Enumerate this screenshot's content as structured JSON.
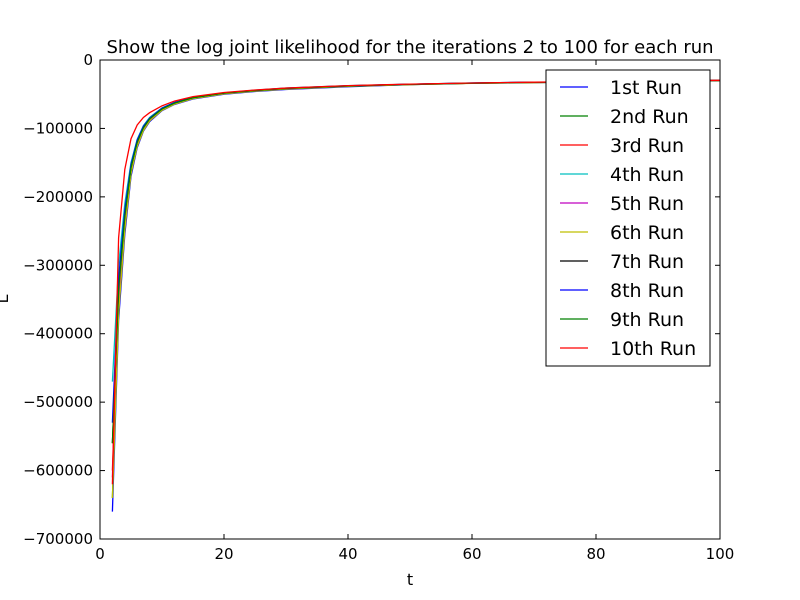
{
  "chart_data": {
    "type": "line",
    "title": "Show the log joint likelihood for the iterations 2 to 100 for each run",
    "xlabel": "t",
    "ylabel": "L",
    "xlim": [
      0,
      100
    ],
    "ylim": [
      -700000,
      0
    ],
    "x_ticks": [
      0,
      20,
      40,
      60,
      80,
      100
    ],
    "y_ticks": [
      0,
      -100000,
      -200000,
      -300000,
      -400000,
      -500000,
      -600000,
      -700000
    ],
    "x_tick_labels": [
      "0",
      "20",
      "40",
      "60",
      "80",
      "100"
    ],
    "y_tick_labels": [
      "0",
      "−100000",
      "−200000",
      "−300000",
      "−400000",
      "−500000",
      "−600000",
      "−700000"
    ],
    "grid": false,
    "legend_position": "top-right",
    "x": [
      2,
      3,
      4,
      5,
      6,
      7,
      8,
      10,
      12,
      15,
      20,
      25,
      30,
      40,
      50,
      60,
      70,
      80,
      90,
      100
    ],
    "series": [
      {
        "name": "1st Run",
        "color": "#0000ff",
        "values": [
          -660000,
          -380000,
          -255000,
          -170000,
          -128000,
          -104000,
          -90000,
          -74000,
          -65000,
          -57000,
          -50000,
          -46000,
          -43000,
          -39000,
          -36000,
          -34000,
          -33000,
          -32000,
          -31000,
          -30000
        ]
      },
      {
        "name": "2nd Run",
        "color": "#008000",
        "values": [
          -640000,
          -365000,
          -245000,
          -165000,
          -125000,
          -102000,
          -88000,
          -73000,
          -64000,
          -56000,
          -49000,
          -45000,
          -42000,
          -38000,
          -36000,
          -34000,
          -33000,
          -32000,
          -31000,
          -30000
        ]
      },
      {
        "name": "3rd Run",
        "color": "#ff0000",
        "values": [
          -600000,
          -340000,
          -230000,
          -158000,
          -120000,
          -99000,
          -86000,
          -71000,
          -63000,
          -55000,
          -48000,
          -44500,
          -41500,
          -38000,
          -35500,
          -34000,
          -32500,
          -31500,
          -30500,
          -30000
        ]
      },
      {
        "name": "4th Run",
        "color": "#00bfbf",
        "values": [
          -470000,
          -300000,
          -210000,
          -150000,
          -116000,
          -96000,
          -84000,
          -70000,
          -62000,
          -54500,
          -48000,
          -44000,
          -41000,
          -37500,
          -35500,
          -33500,
          -32500,
          -31500,
          -30500,
          -29800
        ]
      },
      {
        "name": "5th Run",
        "color": "#bf00bf",
        "values": [
          -610000,
          -350000,
          -238000,
          -162000,
          -122000,
          -100000,
          -87000,
          -72000,
          -63500,
          -55500,
          -48500,
          -44800,
          -41800,
          -38000,
          -35700,
          -34000,
          -32800,
          -31700,
          -30700,
          -30000
        ]
      },
      {
        "name": "6th Run",
        "color": "#bfbf00",
        "values": [
          -640000,
          -370000,
          -248000,
          -166000,
          -126000,
          -103000,
          -89000,
          -73500,
          -64500,
          -56500,
          -49500,
          -45500,
          -42500,
          -38500,
          -36000,
          -34200,
          -33000,
          -31800,
          -30800,
          -30100
        ]
      },
      {
        "name": "7th Run",
        "color": "#000000",
        "values": [
          -560000,
          -330000,
          -225000,
          -156000,
          -119000,
          -98000,
          -85500,
          -71000,
          -62500,
          -55000,
          -48200,
          -44500,
          -41500,
          -37800,
          -35500,
          -33800,
          -32600,
          -31600,
          -30600,
          -29900
        ]
      },
      {
        "name": "8th Run",
        "color": "#0000ff",
        "values": [
          -530000,
          -320000,
          -220000,
          -153000,
          -117000,
          -97000,
          -85000,
          -70500,
          -62000,
          -54800,
          -48000,
          -44200,
          -41200,
          -37600,
          -35400,
          -33700,
          -32500,
          -31500,
          -30500,
          -29800
        ]
      },
      {
        "name": "9th Run",
        "color": "#008000",
        "values": [
          -560000,
          -335000,
          -228000,
          -157000,
          -120000,
          -99000,
          -86000,
          -71500,
          -63000,
          -55200,
          -48300,
          -44600,
          -41600,
          -37900,
          -35600,
          -33900,
          -32700,
          -31600,
          -30600,
          -29900
        ]
      },
      {
        "name": "10th Run",
        "color": "#ff0000",
        "values": [
          -620000,
          -260000,
          -160000,
          -115000,
          -95000,
          -84000,
          -77000,
          -67000,
          -60000,
          -53500,
          -47500,
          -43800,
          -41000,
          -37400,
          -35300,
          -33600,
          -32400,
          -31400,
          -30400,
          -29700
        ]
      }
    ]
  }
}
